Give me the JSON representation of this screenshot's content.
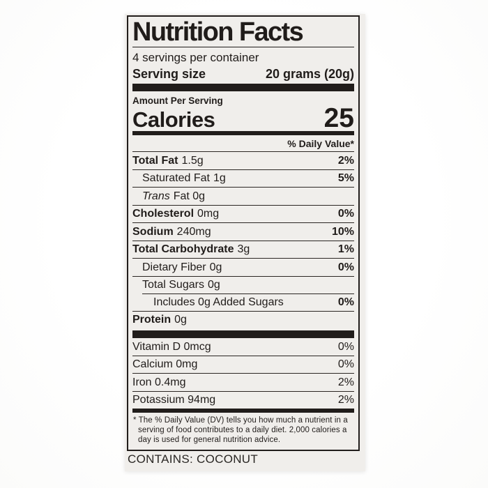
{
  "label": {
    "title": "Nutrition Facts",
    "servings_per_container": "4 servings per container",
    "serving_size_label": "Serving size",
    "serving_size_value": "20 grams (20g)",
    "amount_per_serving": "Amount Per Serving",
    "calories_label": "Calories",
    "calories_value": "25",
    "daily_value_header": "% Daily Value*",
    "nutrients": [
      {
        "name": "Total Fat",
        "amount": "1.5g",
        "dv": "2%"
      },
      {
        "name": "Saturated Fat",
        "amount": "1g",
        "dv": "5%"
      },
      {
        "name": "Trans",
        "amount": "Fat 0g",
        "dv": ""
      },
      {
        "name": "Cholesterol",
        "amount": "0mg",
        "dv": "0%"
      },
      {
        "name": "Sodium",
        "amount": "240mg",
        "dv": "10%"
      },
      {
        "name": "Total Carbohydrate",
        "amount": "3g",
        "dv": "1%"
      },
      {
        "name": "Dietary Fiber",
        "amount": "0g",
        "dv": "0%"
      },
      {
        "name": "Total Sugars",
        "amount": "0g",
        "dv": ""
      },
      {
        "name": "Includes 0g Added Sugars",
        "amount": "",
        "dv": "0%"
      },
      {
        "name": "Protein",
        "amount": "0g",
        "dv": ""
      }
    ],
    "vitamins": [
      {
        "name": "Vitamin D 0mcg",
        "dv": "0%"
      },
      {
        "name": "Calcium 0mg",
        "dv": "0%"
      },
      {
        "name": "Iron 0.4mg",
        "dv": "2%"
      },
      {
        "name": "Potassium 94mg",
        "dv": "2%"
      }
    ],
    "footnote_marker": "*",
    "footnote_text": "The % Daily Value (DV) tells you how much a nutrient in a serving of food contributes to a daily diet. 2,000 calories a day is used for general nutrition advice.",
    "contains_statement": "CONTAINS: COCONUT"
  },
  "colors": {
    "ink": "#211d1b",
    "label_background": "#f0eeeb",
    "page_background": "#ffffff"
  }
}
